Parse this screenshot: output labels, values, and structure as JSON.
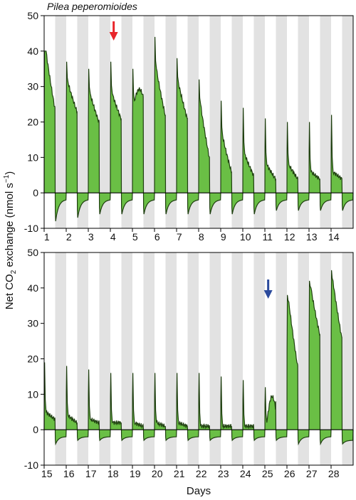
{
  "figure": {
    "species": "Pilea peperomioides",
    "ylabel_main": "Net CO",
    "ylabel_sub": "2",
    "ylabel_after": " exchange (nmol s",
    "ylabel_sup": "−1",
    "ylabel_close": ")",
    "xlabel": "Days"
  },
  "colors": {
    "fill": "#6abf45",
    "line": "#1f3f10",
    "night_band": "#e2e2e2",
    "arrow_top": "#e8262b",
    "arrow_bottom": "#2b4a9c"
  },
  "chart_data": [
    {
      "type": "area",
      "title": "Pilea peperomioides",
      "days": [
        1,
        2,
        3,
        4,
        5,
        6,
        7,
        8,
        9,
        10,
        11,
        12,
        13,
        14
      ],
      "ylim": [
        -10,
        50
      ],
      "yticks": [
        -10,
        0,
        10,
        20,
        30,
        40,
        50
      ],
      "grid": false,
      "day_peak": [
        40,
        37,
        35,
        37,
        35,
        44,
        38,
        32,
        26,
        24,
        21,
        20,
        20,
        22
      ],
      "day_start": [
        40,
        31,
        28,
        28,
        26,
        35,
        31,
        25,
        16,
        11,
        8,
        8,
        6,
        6
      ],
      "day_end": [
        24,
        23,
        20,
        21,
        27,
        22,
        21,
        10,
        6,
        5,
        4,
        4,
        4,
        4
      ],
      "day_hump": [
        0,
        0,
        0,
        0,
        29,
        0,
        0,
        0,
        0,
        0,
        0,
        0,
        0,
        0
      ],
      "night_min": [
        -8,
        -7,
        -6,
        -6,
        -6,
        -6,
        -6,
        -6,
        -6,
        -6,
        -5,
        -5,
        -5,
        -5
      ],
      "night_end": [
        -2,
        -2,
        -2,
        -2,
        -2,
        -2,
        -2,
        -2,
        -2,
        -2,
        -2,
        -2,
        -2,
        -2
      ],
      "arrow_day": 4
    },
    {
      "type": "area",
      "days": [
        15,
        16,
        17,
        18,
        19,
        20,
        21,
        22,
        23,
        24,
        25,
        26,
        27,
        28
      ],
      "ylim": [
        -10,
        50
      ],
      "yticks": [
        -10,
        0,
        10,
        20,
        30,
        40,
        50
      ],
      "grid": false,
      "day_peak": [
        19,
        18,
        17,
        16,
        16,
        16,
        16,
        16,
        15,
        14,
        12,
        38,
        42,
        45
      ],
      "day_start": [
        5,
        4,
        3,
        2,
        2,
        2,
        2,
        1,
        1,
        1,
        2,
        36,
        40,
        42
      ],
      "day_end": [
        3,
        2,
        2,
        2,
        1,
        1,
        1,
        1,
        1,
        1,
        8,
        18,
        27,
        26
      ],
      "day_hump": [
        0,
        0,
        0,
        0,
        0,
        0,
        0,
        0,
        0,
        0,
        8,
        0,
        0,
        0
      ],
      "night_min": [
        -4,
        -3,
        -3,
        -3,
        -3,
        -3,
        -3,
        -3,
        -3,
        -3,
        -3,
        -4,
        -4,
        -4
      ],
      "night_end": [
        -2,
        -2,
        -2,
        -2,
        -2,
        -2,
        -2,
        -2,
        -2,
        -2,
        -2,
        -2,
        -2,
        -3
      ],
      "arrow_day": 25
    }
  ]
}
